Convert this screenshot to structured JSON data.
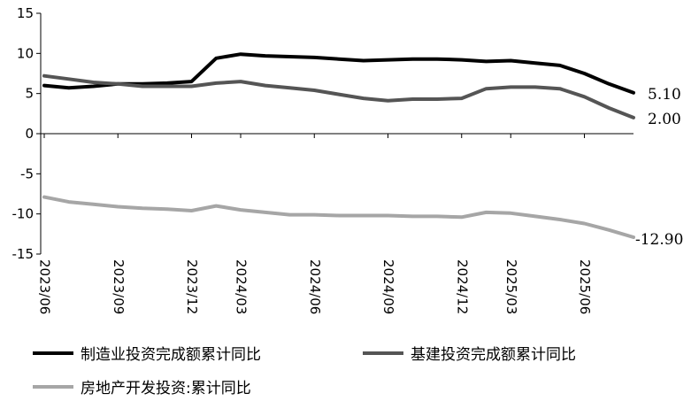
{
  "chart_data": {
    "type": "line",
    "title": "",
    "xlabel": "",
    "ylabel": "",
    "ylim": [
      -15,
      15
    ],
    "yticks": [
      15,
      10,
      5,
      0,
      -5,
      -10,
      -15
    ],
    "xtick_labels": [
      "2023/06",
      "2023/09",
      "2023/12",
      "2024/03",
      "2024/06",
      "2024/09",
      "2024/12",
      "2025/03",
      "2025/06"
    ],
    "x": [
      "2023/06",
      "2023/07",
      "2023/08",
      "2023/09",
      "2023/10",
      "2023/11",
      "2023/12",
      "2024/02",
      "2024/03",
      "2024/04",
      "2024/05",
      "2024/06",
      "2024/07",
      "2024/08",
      "2024/09",
      "2024/10",
      "2024/11",
      "2024/12",
      "2025/02",
      "2025/03",
      "2025/04",
      "2025/05",
      "2025/06",
      "2025/07",
      "2025/08"
    ],
    "grid": false,
    "legend_position": "bottom",
    "series": [
      {
        "name": "制造业投资完成额累计同比",
        "color": "#000000",
        "values": [
          6.0,
          5.7,
          5.9,
          6.2,
          6.2,
          6.3,
          6.5,
          9.4,
          9.9,
          9.7,
          9.6,
          9.5,
          9.3,
          9.1,
          9.2,
          9.3,
          9.3,
          9.2,
          9.0,
          9.1,
          8.8,
          8.5,
          7.5,
          6.2,
          5.1
        ],
        "end_label": "5.10"
      },
      {
        "name": "基建投资完成额累计同比",
        "color": "#555555",
        "values": [
          7.2,
          6.8,
          6.4,
          6.2,
          5.9,
          5.9,
          5.9,
          6.3,
          6.5,
          6.0,
          5.7,
          5.4,
          4.9,
          4.4,
          4.1,
          4.3,
          4.3,
          4.4,
          5.6,
          5.8,
          5.8,
          5.6,
          4.6,
          3.2,
          2.0
        ],
        "end_label": "2.00"
      },
      {
        "name": "房地产开发投资:累计同比",
        "color": "#a6a6a6",
        "values": [
          -7.9,
          -8.5,
          -8.8,
          -9.1,
          -9.3,
          -9.4,
          -9.6,
          -9.0,
          -9.5,
          -9.8,
          -10.1,
          -10.1,
          -10.2,
          -10.2,
          -10.2,
          -10.3,
          -10.3,
          -10.4,
          -9.8,
          -9.9,
          -10.3,
          -10.7,
          -11.2,
          -12.0,
          -12.9
        ],
        "end_label": "-12.90"
      }
    ]
  }
}
